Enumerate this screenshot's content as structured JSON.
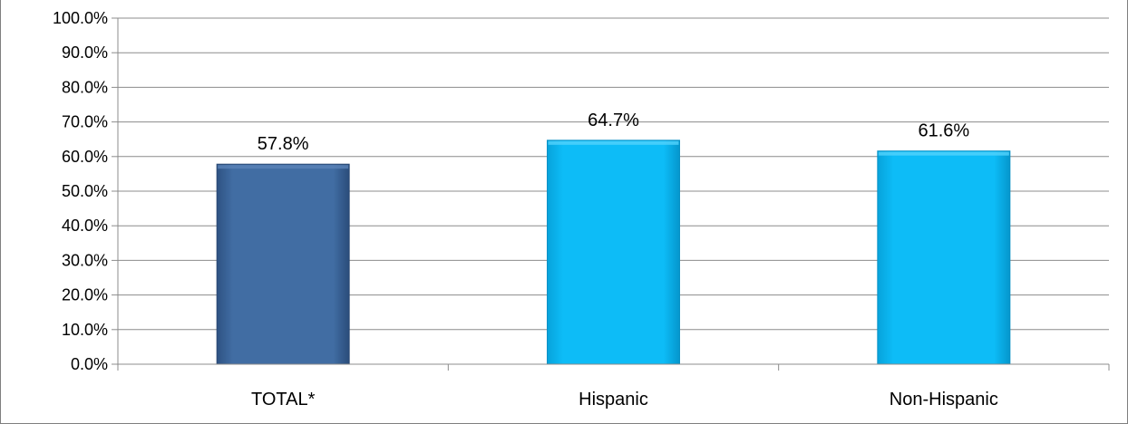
{
  "chart_data": {
    "type": "bar",
    "categories": [
      "TOTAL*",
      "Hispanic",
      "Non-Hispanic"
    ],
    "values": [
      57.8,
      64.7,
      61.6
    ],
    "data_labels": [
      "57.8%",
      "64.7%",
      "61.6%"
    ],
    "bar_colors": [
      "#3f689c",
      "#0ab8f4",
      "#0ab8f4"
    ],
    "ylim": [
      0,
      100
    ],
    "yticks": [
      0,
      10,
      20,
      30,
      40,
      50,
      60,
      70,
      80,
      90,
      100
    ],
    "ytick_labels": [
      "0.0%",
      "10.0%",
      "20.0%",
      "30.0%",
      "40.0%",
      "50.0%",
      "60.0%",
      "70.0%",
      "80.0%",
      "90.0%",
      "100.0%"
    ],
    "grid": true,
    "gridline_color": "#8c8c8c",
    "title": "",
    "xlabel": "",
    "ylabel": ""
  }
}
